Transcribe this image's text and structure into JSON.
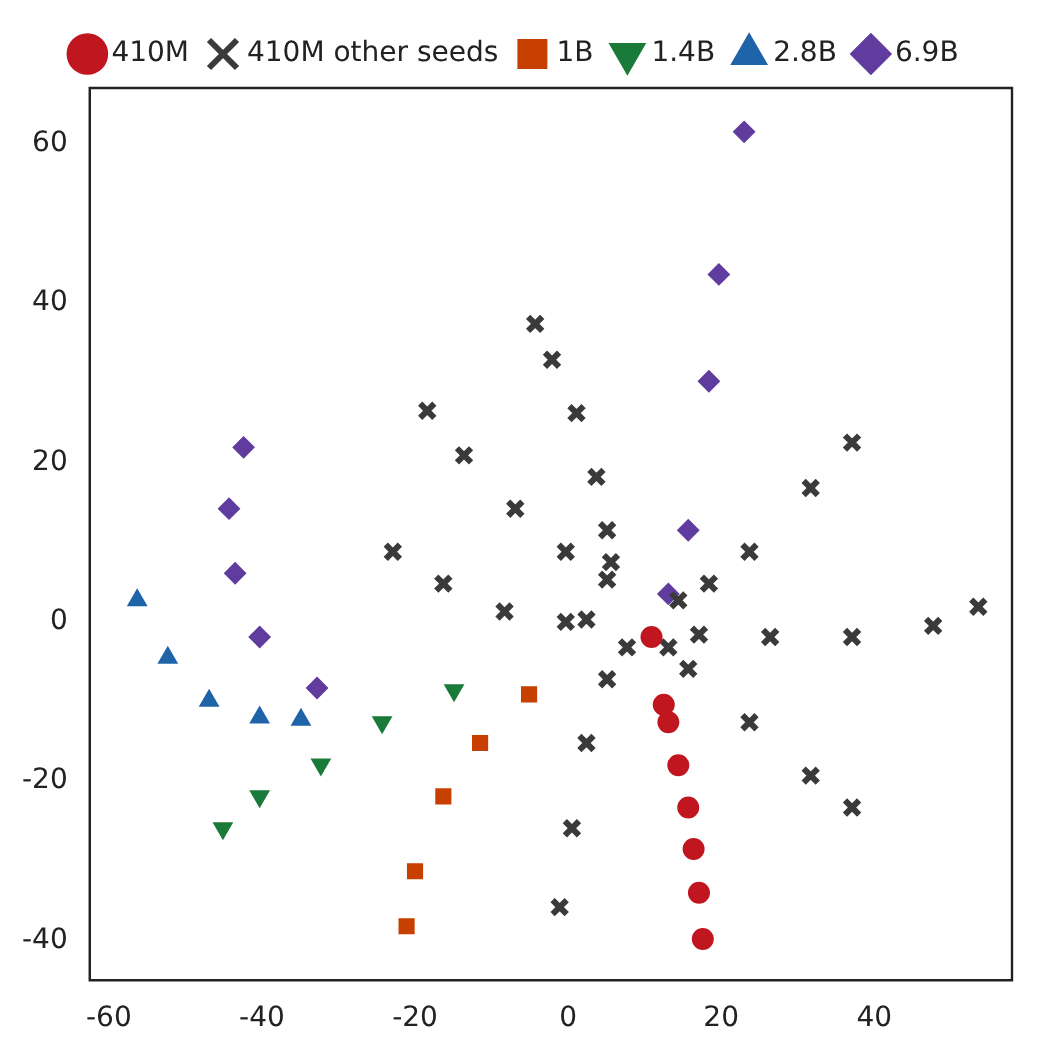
{
  "chart_data": {
    "type": "scatter",
    "xlim": [
      -62.5,
      58
    ],
    "ylim": [
      -45,
      67
    ],
    "xticks": [
      -60,
      -40,
      -20,
      0,
      20,
      40
    ],
    "yticks": [
      -40,
      -20,
      0,
      20,
      40,
      60
    ],
    "grid": false,
    "legend": "top",
    "series": [
      {
        "name": "410M",
        "color": "#c0161f",
        "marker": "circle",
        "x": [
          10.9,
          12.5,
          13.1,
          14.4,
          15.7,
          16.4,
          17.1,
          17.6
        ],
        "values": [
          -1.9,
          -10.4,
          -12.6,
          -18,
          -23.3,
          -28.5,
          -34,
          -39.8
        ]
      },
      {
        "name": "410M other seeds",
        "color": "#3a3a3a",
        "marker": "cross",
        "x": [
          5.6,
          5.1,
          3.7,
          1.1,
          -2.1,
          -4.3,
          5.1,
          -0.3,
          -6.9,
          -13.6,
          -18.4,
          2.4,
          -0.3,
          -8.3,
          -16.3,
          -22.9,
          14.4,
          18.4,
          23.7,
          31.7,
          37.1,
          17.1,
          26.4,
          37.1,
          47.7,
          53.6,
          13.1,
          15.7,
          23.7,
          31.7,
          37.1,
          7.7,
          5.1,
          2.4,
          0.5,
          -1.1
        ],
        "values": [
          7.5,
          11.5,
          18.2,
          26.2,
          32.9,
          37.4,
          5.3,
          8.8,
          14.2,
          20.9,
          26.5,
          0.3,
          0,
          1.3,
          4.8,
          8.8,
          2.7,
          4.8,
          8.8,
          16.8,
          22.5,
          -1.6,
          -1.9,
          -1.9,
          -0.5,
          1.9,
          -3.2,
          -5.9,
          -12.6,
          -19.3,
          -23.3,
          -3.2,
          -7.2,
          -15.2,
          -25.9,
          -35.8
        ]
      },
      {
        "name": "1B",
        "color": "#c74000",
        "marker": "square",
        "x": [
          -5.1,
          -11.5,
          -16.3,
          -20,
          -21.1
        ],
        "values": [
          -9.1,
          -15.2,
          -21.9,
          -31.3,
          -38.2
        ]
      },
      {
        "name": "1.4B",
        "color": "#1a7a3a",
        "marker": "triangle-down",
        "x": [
          -14.9,
          -24.3,
          -32.3,
          -40.3,
          -45.1
        ],
        "values": [
          -8.6,
          -12.6,
          -17.9,
          -21.9,
          -25.9
        ]
      },
      {
        "name": "2.8B",
        "color": "#1f63a8",
        "marker": "triangle",
        "x": [
          -34.9,
          -40.3,
          -46.9,
          -52.3,
          -56.3
        ],
        "values": [
          -12.3,
          -12,
          -9.9,
          -4.5,
          2.7
        ]
      },
      {
        "name": "6.9B",
        "color": "#5f3c9e",
        "marker": "diamond",
        "x": [
          13.1,
          15.7,
          18.4,
          19.7,
          23,
          -32.8,
          -40.3,
          -43.5,
          -44.3,
          -42.4
        ],
        "values": [
          3.5,
          11.5,
          30.2,
          43.6,
          61.5,
          -8.3,
          -1.9,
          6.1,
          14.2,
          21.9
        ]
      }
    ]
  }
}
